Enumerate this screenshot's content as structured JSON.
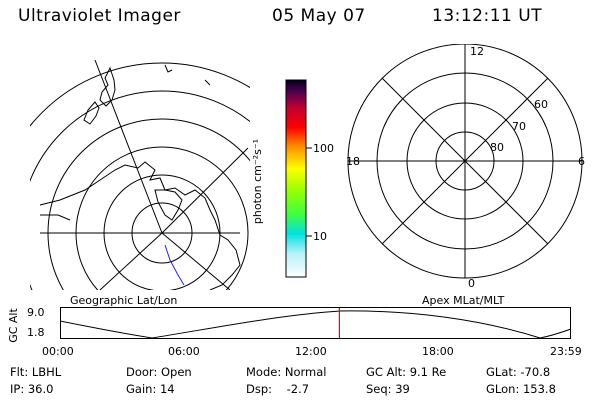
{
  "header": {
    "title": "Ultraviolet Imager",
    "date": "05 May 07",
    "time": "13:12:11 UT"
  },
  "colorbar": {
    "unit_label": "photon cm⁻²s⁻¹",
    "tick_100": "100",
    "tick_10": "10"
  },
  "geo_panel": {
    "label": "Geographic Lat/Lon"
  },
  "apex_panel": {
    "label": "Apex MLat/MLT",
    "mlt_top": "12",
    "mlt_left": "18",
    "mlt_right": "6",
    "mlt_bottom": "0",
    "lat_60": "60",
    "lat_70": "70",
    "lat_80": "80"
  },
  "timeline": {
    "ylabel": "GC Alt",
    "ytick_top": "9.0",
    "ytick_bottom": "1.8",
    "ticks": [
      "00:00",
      "06:00",
      "12:00",
      "18:00",
      "23:59"
    ],
    "current_fraction": 0.5467
  },
  "status": {
    "flt": "Flt: LBHL",
    "ip": "IP: 36.0",
    "door": "Door: Open",
    "gain": "Gain: 14",
    "mode": "Mode: Normal",
    "dsp": "Dsp:    -2.7",
    "gc_alt": "GC Alt: 9.1 Re",
    "seq": "Seq: 39",
    "glat": "GLat: -70.8",
    "glon": "GLon: 153.8"
  },
  "colors": {
    "marker": "#ff0000",
    "track": "#2020ff"
  }
}
